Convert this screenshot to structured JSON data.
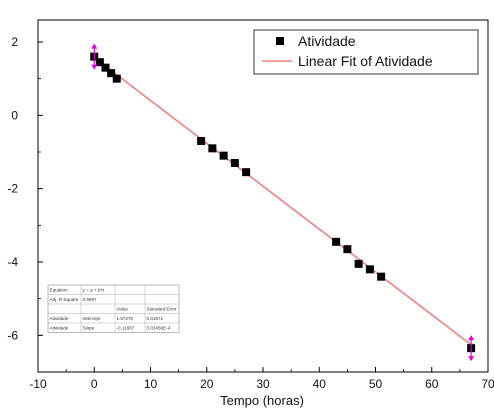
{
  "chart_data": {
    "type": "scatter",
    "xlabel": "Tempo (horas)",
    "ylabel": "",
    "xlim": [
      -10,
      70
    ],
    "ylim": [
      -7,
      2.6
    ],
    "x_ticks": [
      -10,
      0,
      10,
      20,
      30,
      40,
      50,
      60,
      70
    ],
    "y_ticks": [
      2,
      0,
      -2,
      -4,
      -6
    ],
    "grid": false,
    "legend_position": "top-right",
    "series": [
      {
        "name": "Atividade",
        "color": "#000000",
        "marker": "square",
        "x": [
          0,
          1,
          2,
          3,
          4,
          19,
          21,
          23,
          25,
          27,
          43,
          45,
          47,
          49,
          51,
          67
        ],
        "y": [
          1.6,
          1.45,
          1.3,
          1.15,
          1.0,
          -0.7,
          -0.9,
          -1.1,
          -1.3,
          -1.55,
          -3.45,
          -3.65,
          -4.05,
          -4.2,
          -4.4,
          -6.35
        ]
      },
      {
        "name": "Linear Fit of Atividade",
        "color": "#f08080",
        "type": "line",
        "intercept": 1.5727,
        "slope": -0.11687,
        "x_range": [
          0,
          67
        ]
      }
    ],
    "error_markers": [
      {
        "x": 0,
        "y": 1.6,
        "color": "#e000e0"
      },
      {
        "x": 67,
        "y": -6.35,
        "color": "#e000e0"
      }
    ],
    "stats_table": {
      "rows": [
        [
          "Equation",
          "y = a + b*x",
          "",
          ""
        ],
        [
          "Adj. R-Square",
          "0.9997",
          "",
          ""
        ],
        [
          "",
          "",
          "Value",
          "Standard Error"
        ],
        [
          "Atividade",
          "Intercept",
          "1.57270",
          "0.01671"
        ],
        [
          "Atividade",
          "Slope",
          "-0.11687",
          "3.03458E-4"
        ]
      ]
    }
  }
}
